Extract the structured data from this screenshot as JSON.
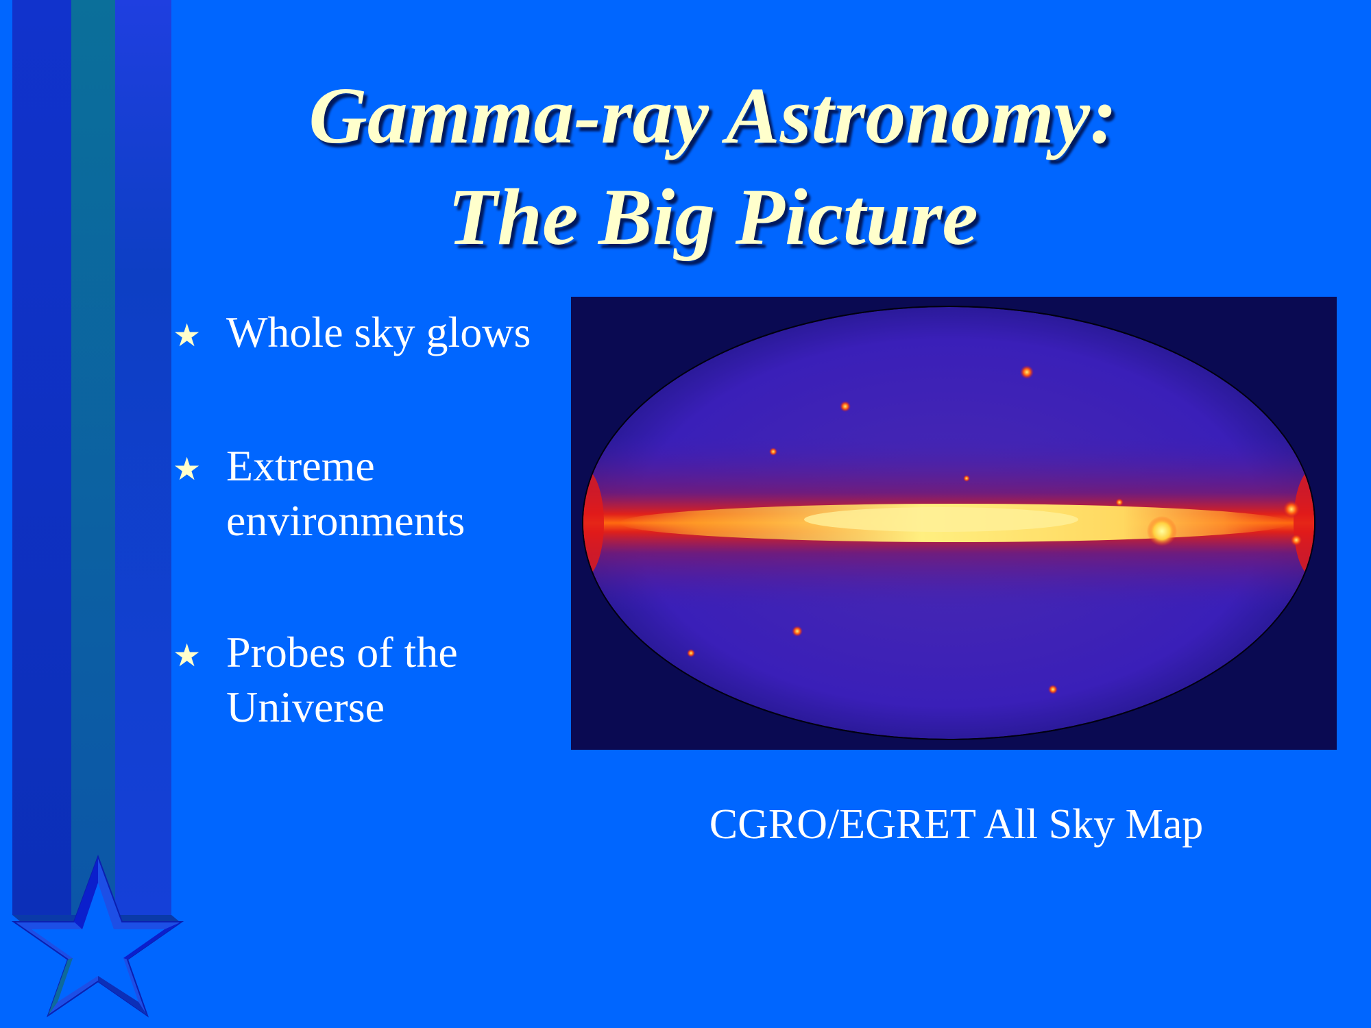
{
  "slide": {
    "title_line1": "Gamma-ray Astronomy:",
    "title_line2": "The Big Picture",
    "bullet_icon": "star-icon",
    "bullets": [
      {
        "text": "Whole sky glows"
      },
      {
        "text": "Extreme\nenvironments"
      },
      {
        "text": "Probes of the\nUniverse"
      }
    ],
    "image_caption": "CGRO/EGRET All Sky Map"
  },
  "colors": {
    "background": "#0066ff",
    "title": "#ffffcc",
    "text": "#ffffff",
    "map_backdrop": "#0a0a52"
  }
}
